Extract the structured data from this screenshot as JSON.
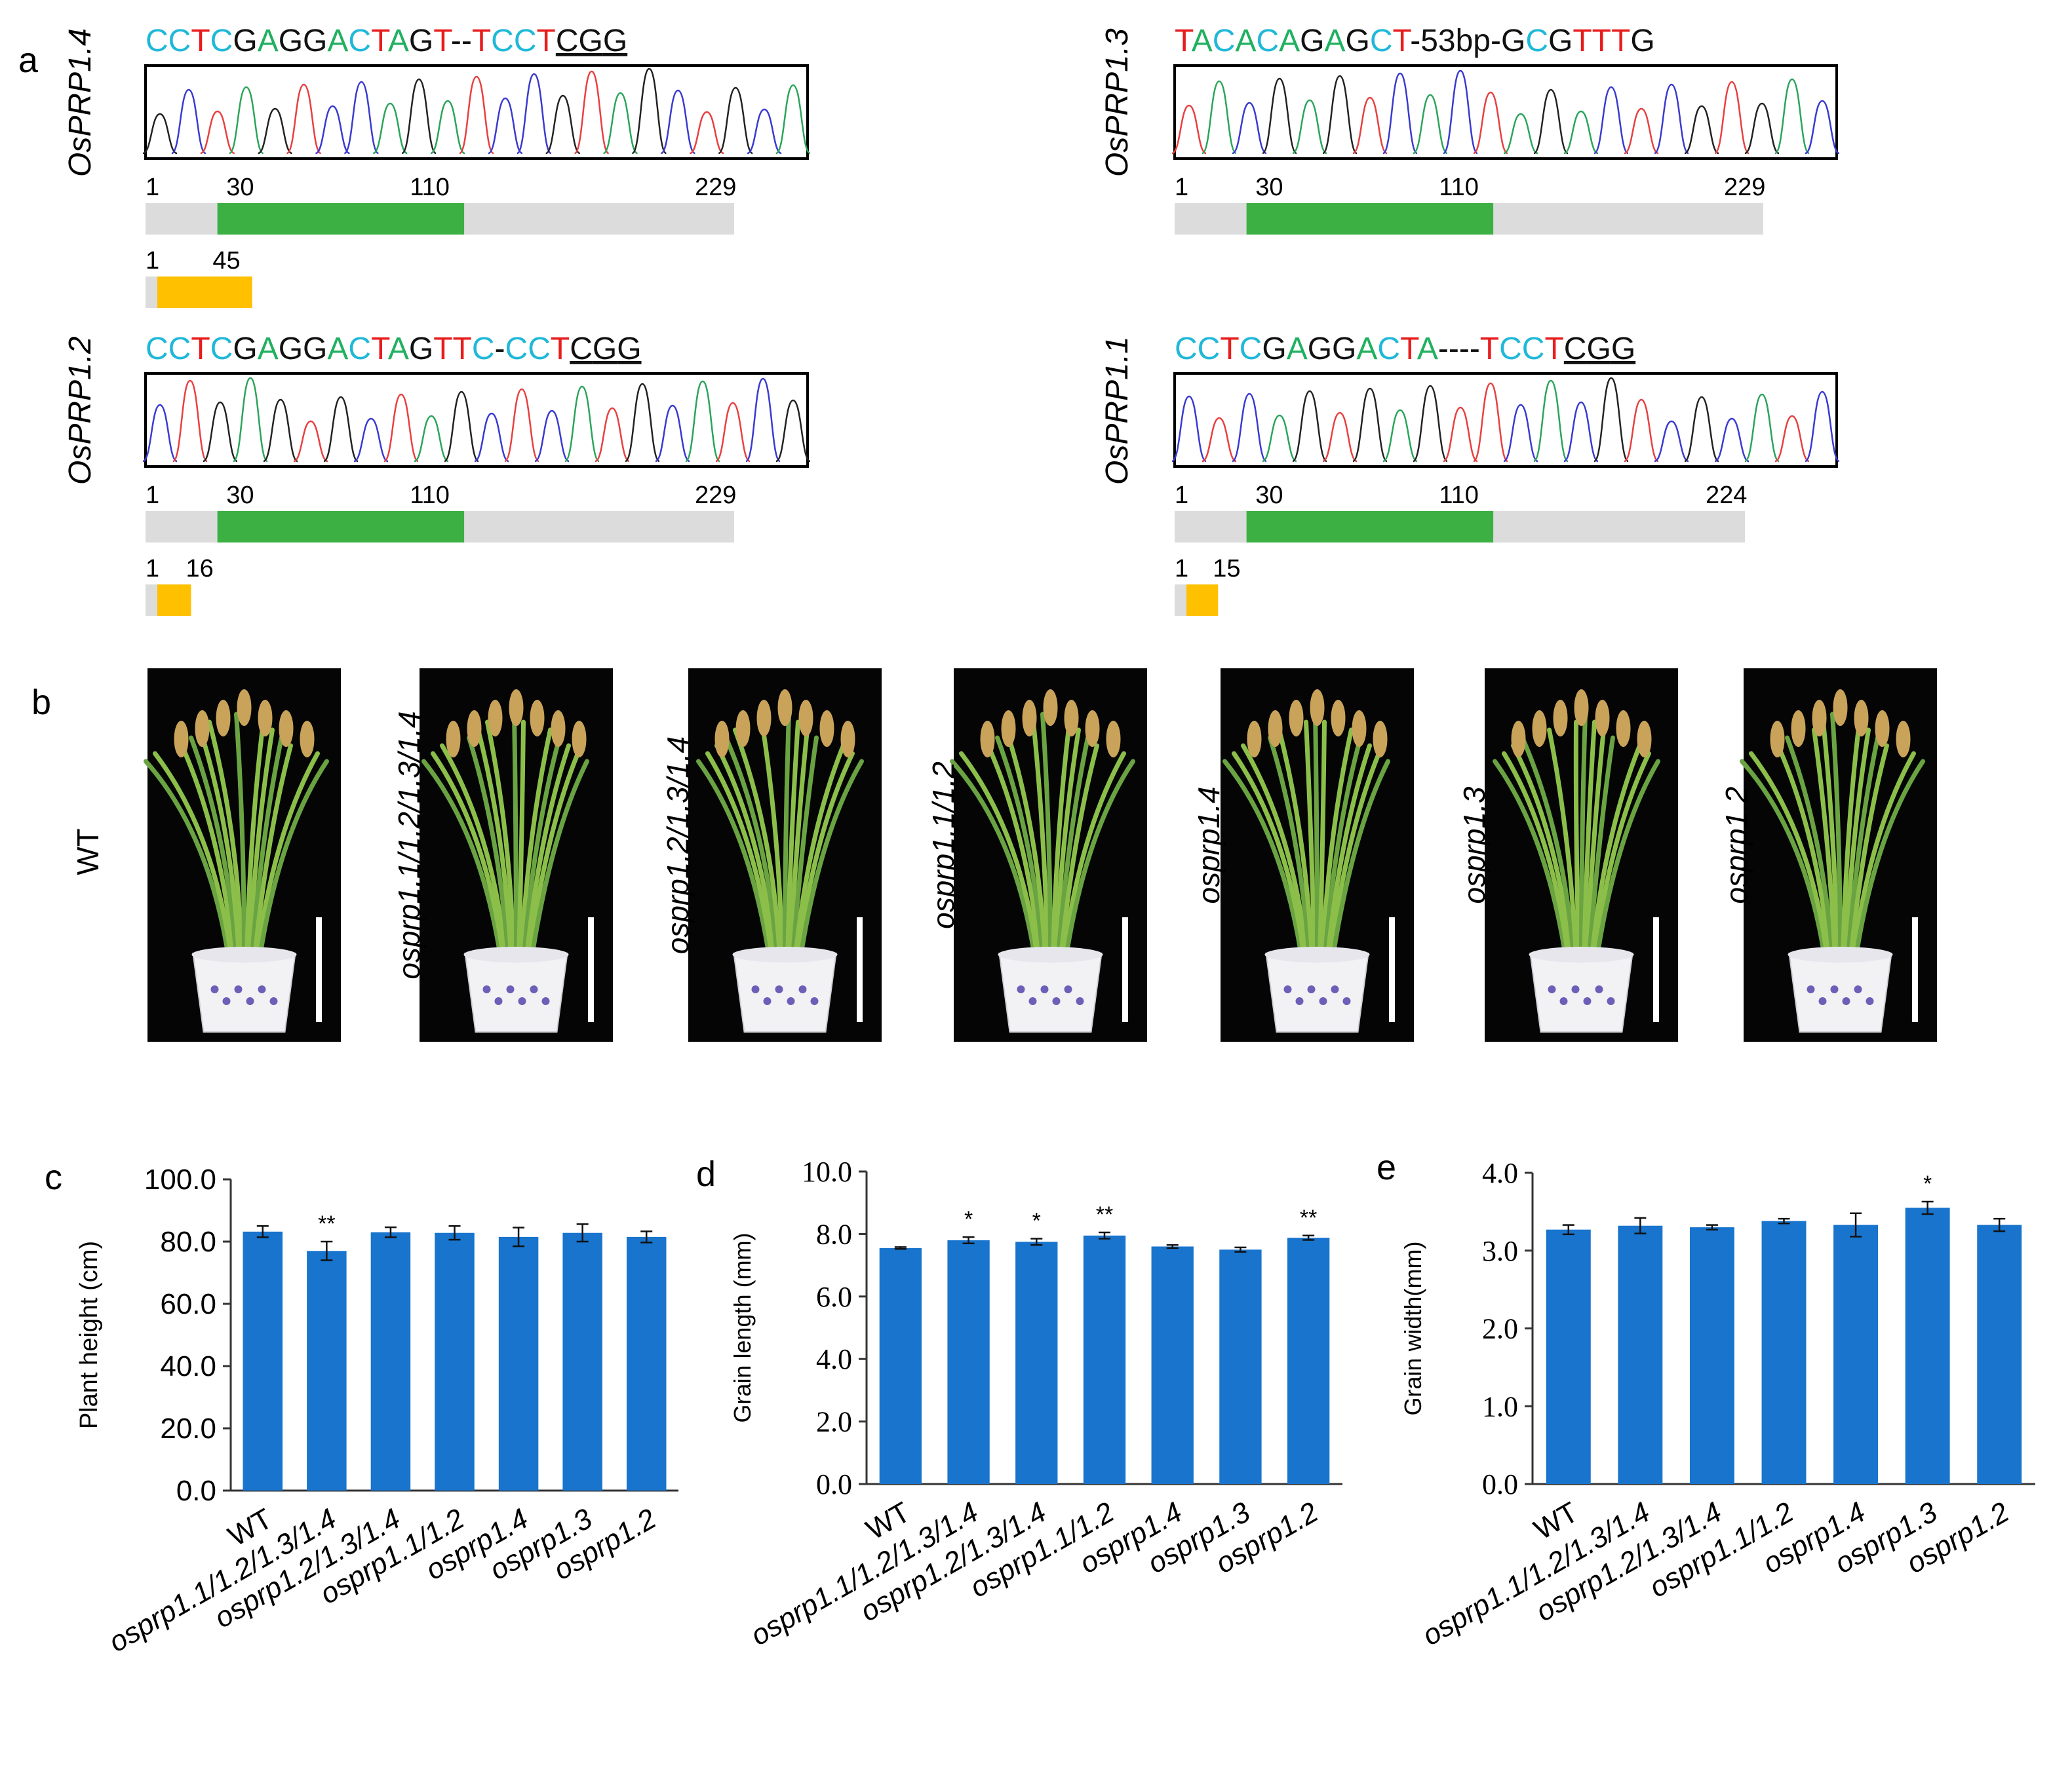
{
  "panel_labels": {
    "a": "a",
    "b": "b",
    "c": "c",
    "d": "d",
    "e": "e"
  },
  "colors": {
    "A": "#20b060",
    "C": "#20b8d8",
    "G": "#111111",
    "T": "#e81c1c",
    "green_domain": "#3cb043",
    "orange_protein": "#ffc000",
    "gray_bar": "#dcdcdc",
    "bar_blue": "#1874cd"
  },
  "panel_a": [
    {
      "gene": "OsPRP1.4",
      "sequence": "CCTCGAGGACTAGT--TCCTCGG",
      "pam": "CGG",
      "wt_len": "229",
      "domain_start": "30",
      "domain_end": "110",
      "start": "1",
      "mut_len": "45"
    },
    {
      "gene": "OsPRP1.3",
      "sequence": "TACACAGAGCT-53bp-GCGTTTG",
      "pam": "",
      "wt_len": "229",
      "domain_start": "30",
      "domain_end": "110",
      "start": "1",
      "mut_len": ""
    },
    {
      "gene": "OsPRP1.2",
      "sequence": "CCTCGAGGACTAGTTC-CCTCGG",
      "pam": "CGG",
      "wt_len": "229",
      "domain_start": "30",
      "domain_end": "110",
      "start": "1",
      "mut_len": "16"
    },
    {
      "gene": "OsPRP1.1",
      "sequence": "CCTCGAGGACTA----TCCTCGG",
      "pam": "CGG",
      "wt_len": "224",
      "domain_start": "30",
      "domain_end": "110",
      "start": "1",
      "mut_len": "15"
    }
  ],
  "panel_b": {
    "plants": [
      "WT",
      "osprp1.1/1.2/1.3/1.4",
      "osprp1.2/1.3/1.4",
      "osprp1.1/1.2",
      "osprp1.4",
      "osprp1.3",
      "osprp1.2"
    ]
  },
  "chart_data": [
    {
      "type": "bar",
      "panel": "c",
      "title": "",
      "xlabel": "",
      "ylabel": "Plant  height (cm)",
      "categories": [
        "WT",
        "osprp1.1/1.2/1.3/1.4",
        "osprp1.2/1.3/1.4",
        "osprp1.1/1.2",
        "osprp1.4",
        "osprp1.3",
        "osprp1.2"
      ],
      "values": [
        83.2,
        77.0,
        83.0,
        82.8,
        81.5,
        82.8,
        81.5
      ],
      "errors": [
        1.8,
        3.0,
        1.6,
        2.2,
        3.0,
        2.8,
        1.8
      ],
      "significance": [
        "",
        "**",
        "",
        "",
        "",
        "",
        ""
      ],
      "ylim": [
        0,
        100
      ],
      "yticks": [
        "0.0",
        "20.0",
        "40.0",
        "60.0",
        "80.0",
        "100.0"
      ],
      "grid": false
    },
    {
      "type": "bar",
      "panel": "d",
      "title": "",
      "xlabel": "",
      "ylabel": "Grain length (mm)",
      "categories": [
        "WT",
        "osprp1.1/1.2/1.3/1.4",
        "osprp1.2/1.3/1.4",
        "osprp1.1/1.2",
        "osprp1.4",
        "osprp1.3",
        "osprp1.2"
      ],
      "values": [
        7.55,
        7.8,
        7.75,
        7.95,
        7.6,
        7.5,
        7.88
      ],
      "errors": [
        0.03,
        0.1,
        0.1,
        0.1,
        0.05,
        0.07,
        0.07
      ],
      "significance": [
        "",
        "*",
        "*",
        "**",
        "",
        "",
        "**"
      ],
      "ylim": [
        0,
        10
      ],
      "yticks": [
        "0.0",
        "2.0",
        "4.0",
        "6.0",
        "8.0",
        "10.0"
      ],
      "grid": false
    },
    {
      "type": "bar",
      "panel": "e",
      "title": "",
      "xlabel": "",
      "ylabel": "Grain width(mm)",
      "categories": [
        "WT",
        "osprp1.1/1.2/1.3/1.4",
        "osprp1.2/1.3/1.4",
        "osprp1.1/1.2",
        "osprp1.4",
        "osprp1.3",
        "osprp1.2"
      ],
      "values": [
        3.27,
        3.32,
        3.3,
        3.38,
        3.33,
        3.55,
        3.33
      ],
      "errors": [
        0.06,
        0.1,
        0.03,
        0.03,
        0.15,
        0.08,
        0.08
      ],
      "significance": [
        "",
        "",
        "",
        "",
        "",
        "*",
        ""
      ],
      "ylim": [
        0,
        4
      ],
      "yticks": [
        "0.0",
        "1.0",
        "2.0",
        "3.0",
        "4.0"
      ],
      "grid": false
    }
  ]
}
